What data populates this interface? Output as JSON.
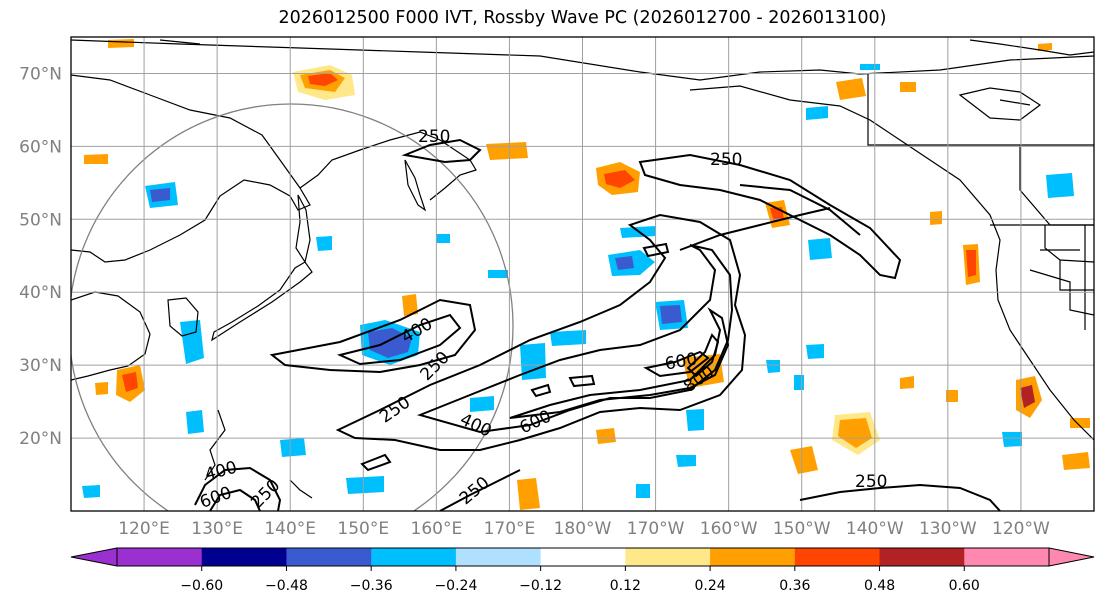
{
  "title": "2026012500 F000 IVT, Rossby Wave PC (2026012700 - 2026013100)",
  "colors": {
    "land_outline": "#000000",
    "grid": "#a0a0a0",
    "circle": "#808080",
    "axis_label": "#808080",
    "contour": "#000000"
  },
  "map": {
    "lon_range": [
      110,
      250
    ],
    "lat_range": [
      10,
      75
    ],
    "lat_labels": [
      {
        "lat": 70,
        "text": "70°N"
      },
      {
        "lat": 60,
        "text": "60°N"
      },
      {
        "lat": 50,
        "text": "50°N"
      },
      {
        "lat": 40,
        "text": "40°N"
      },
      {
        "lat": 30,
        "text": "30°N"
      },
      {
        "lat": 20,
        "text": "20°N"
      }
    ],
    "lon_labels": [
      {
        "lon": 120,
        "text": "120°E"
      },
      {
        "lon": 130,
        "text": "130°E"
      },
      {
        "lon": 140,
        "text": "140°E"
      },
      {
        "lon": 150,
        "text": "150°E"
      },
      {
        "lon": 160,
        "text": "160°E"
      },
      {
        "lon": 170,
        "text": "170°E"
      },
      {
        "lon": 180,
        "text": "180°W"
      },
      {
        "lon": 190,
        "text": "170°W"
      },
      {
        "lon": 200,
        "text": "160°W"
      },
      {
        "lon": 210,
        "text": "150°W"
      },
      {
        "lon": 220,
        "text": "140°W"
      },
      {
        "lon": 230,
        "text": "130°W"
      },
      {
        "lon": 240,
        "text": "120°W"
      }
    ]
  },
  "ivt_contours": {
    "label_values": [
      "250",
      "250",
      "250",
      "250",
      "250",
      "250",
      "400",
      "400",
      "400",
      "600",
      "600",
      "600",
      "800",
      "250"
    ]
  },
  "colorbar": {
    "ticks": [
      "−0.60",
      "−0.48",
      "−0.36",
      "−0.24",
      "−0.12",
      "0.12",
      "0.24",
      "0.36",
      "0.48",
      "0.60"
    ],
    "colors": [
      "#9b30d0",
      "#000090",
      "#3a5bcf",
      "#00bfff",
      "#b0e0ff",
      "#ffffff",
      "#ffe88a",
      "#ffa000",
      "#ff4500",
      "#b22222",
      "#ff88b0"
    ]
  }
}
